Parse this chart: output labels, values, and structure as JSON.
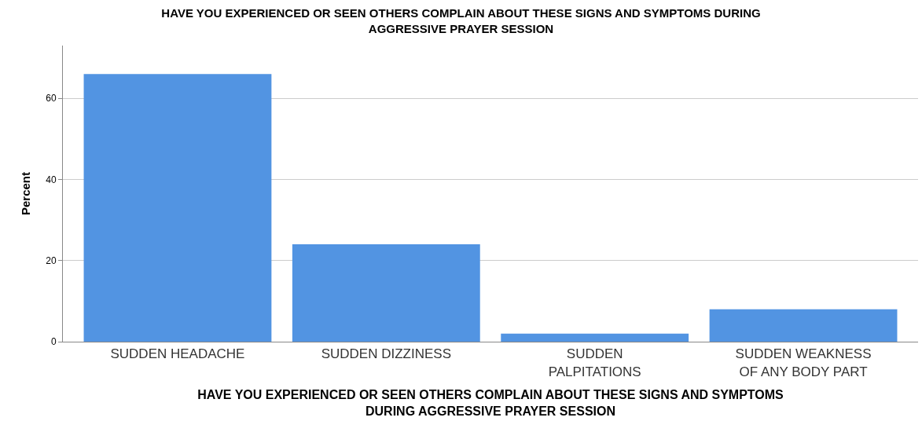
{
  "chart_data": {
    "type": "bar",
    "title": "HAVE YOU EXPERIENCED OR SEEN OTHERS COMPLAIN ABOUT THESE SIGNS AND SYMPTOMS DURING AGGRESSIVE PRAYER SESSION",
    "xlabel": "HAVE YOU EXPERIENCED OR SEEN OTHERS COMPLAIN ABOUT THESE SIGNS AND SYMPTOMS DURING AGGRESSIVE PRAYER SESSION",
    "ylabel": "Percent",
    "categories": [
      "SUDDEN HEADACHE",
      "SUDDEN DIZZINESS",
      "SUDDEN PALPITATIONS",
      "SUDDEN WEAKNESS OF ANY BODY PART"
    ],
    "values": [
      66,
      24,
      2,
      8
    ],
    "color": "#5294e2",
    "ylim": [
      0,
      73
    ],
    "yticks": [
      0,
      20,
      40,
      60
    ],
    "grid": "y",
    "legend": false
  }
}
